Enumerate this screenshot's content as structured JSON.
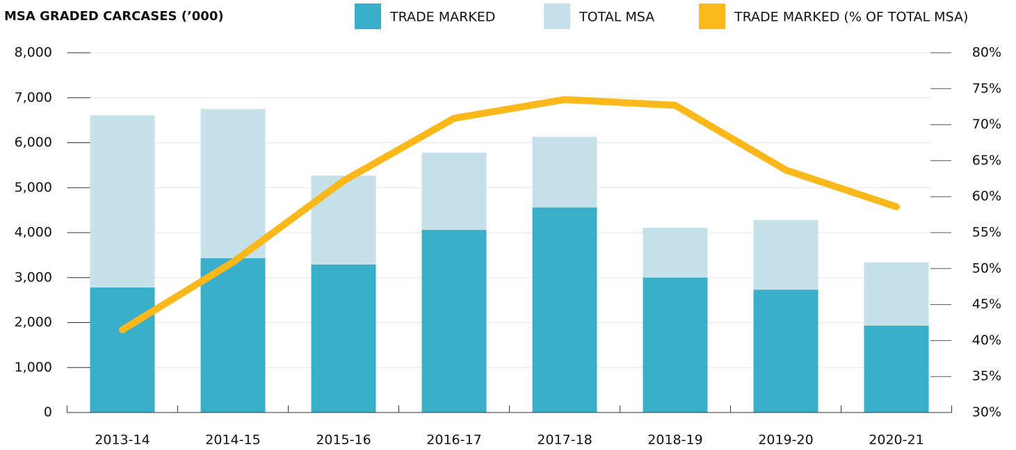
{
  "chart_data": {
    "type": "bar-line",
    "title": "MSA GRADED CARCASES (’000)",
    "categories": [
      "2013-14",
      "2014-15",
      "2015-16",
      "2016-17",
      "2017-18",
      "2018-19",
      "2019-20",
      "2020-21"
    ],
    "series": [
      {
        "name": "TRADE MARKED",
        "color": "#3aafc9",
        "type": "bar",
        "values": [
          2780,
          3430,
          3290,
          4060,
          4560,
          3000,
          2730,
          1930
        ]
      },
      {
        "name": "TOTAL MSA",
        "color": "#c6e1ea",
        "type": "bar",
        "values": [
          6610,
          6750,
          5270,
          5780,
          6130,
          4110,
          4280,
          3340
        ]
      },
      {
        "name": "TRADE MARKED (% OF TOTAL MSA)",
        "color": "#fbb81a",
        "type": "line",
        "axis": "y2",
        "values": [
          41.5,
          50.9,
          62.2,
          70.9,
          73.5,
          72.7,
          63.7,
          58.6
        ]
      }
    ],
    "ylim": [
      0,
      8000
    ],
    "yticks": [
      0,
      {
        "value": 1000,
        "label": "1,000"
      },
      {
        "value": 2000,
        "label": "2,000"
      },
      {
        "value": 3000,
        "label": "3,000"
      },
      {
        "value": 4000,
        "label": "4,000"
      },
      {
        "value": 5000,
        "label": "5,000"
      },
      {
        "value": 6000,
        "label": "6,000"
      },
      {
        "value": 7000,
        "label": "7,000"
      },
      {
        "value": 8000,
        "label": "8,000"
      }
    ],
    "y2lim": [
      30,
      80
    ],
    "y2ticks": [
      {
        "value": 30,
        "label": "30%"
      },
      {
        "value": 35,
        "label": "35%"
      },
      {
        "value": 40,
        "label": "40%"
      },
      {
        "value": 45,
        "label": "45%"
      },
      {
        "value": 50,
        "label": "50%"
      },
      {
        "value": 55,
        "label": "55%"
      },
      {
        "value": 60,
        "label": "60%"
      },
      {
        "value": 65,
        "label": "65%"
      },
      {
        "value": 70,
        "label": "70%"
      },
      {
        "value": 75,
        "label": "75%"
      },
      {
        "value": 80,
        "label": "80%"
      }
    ],
    "grid": true
  }
}
